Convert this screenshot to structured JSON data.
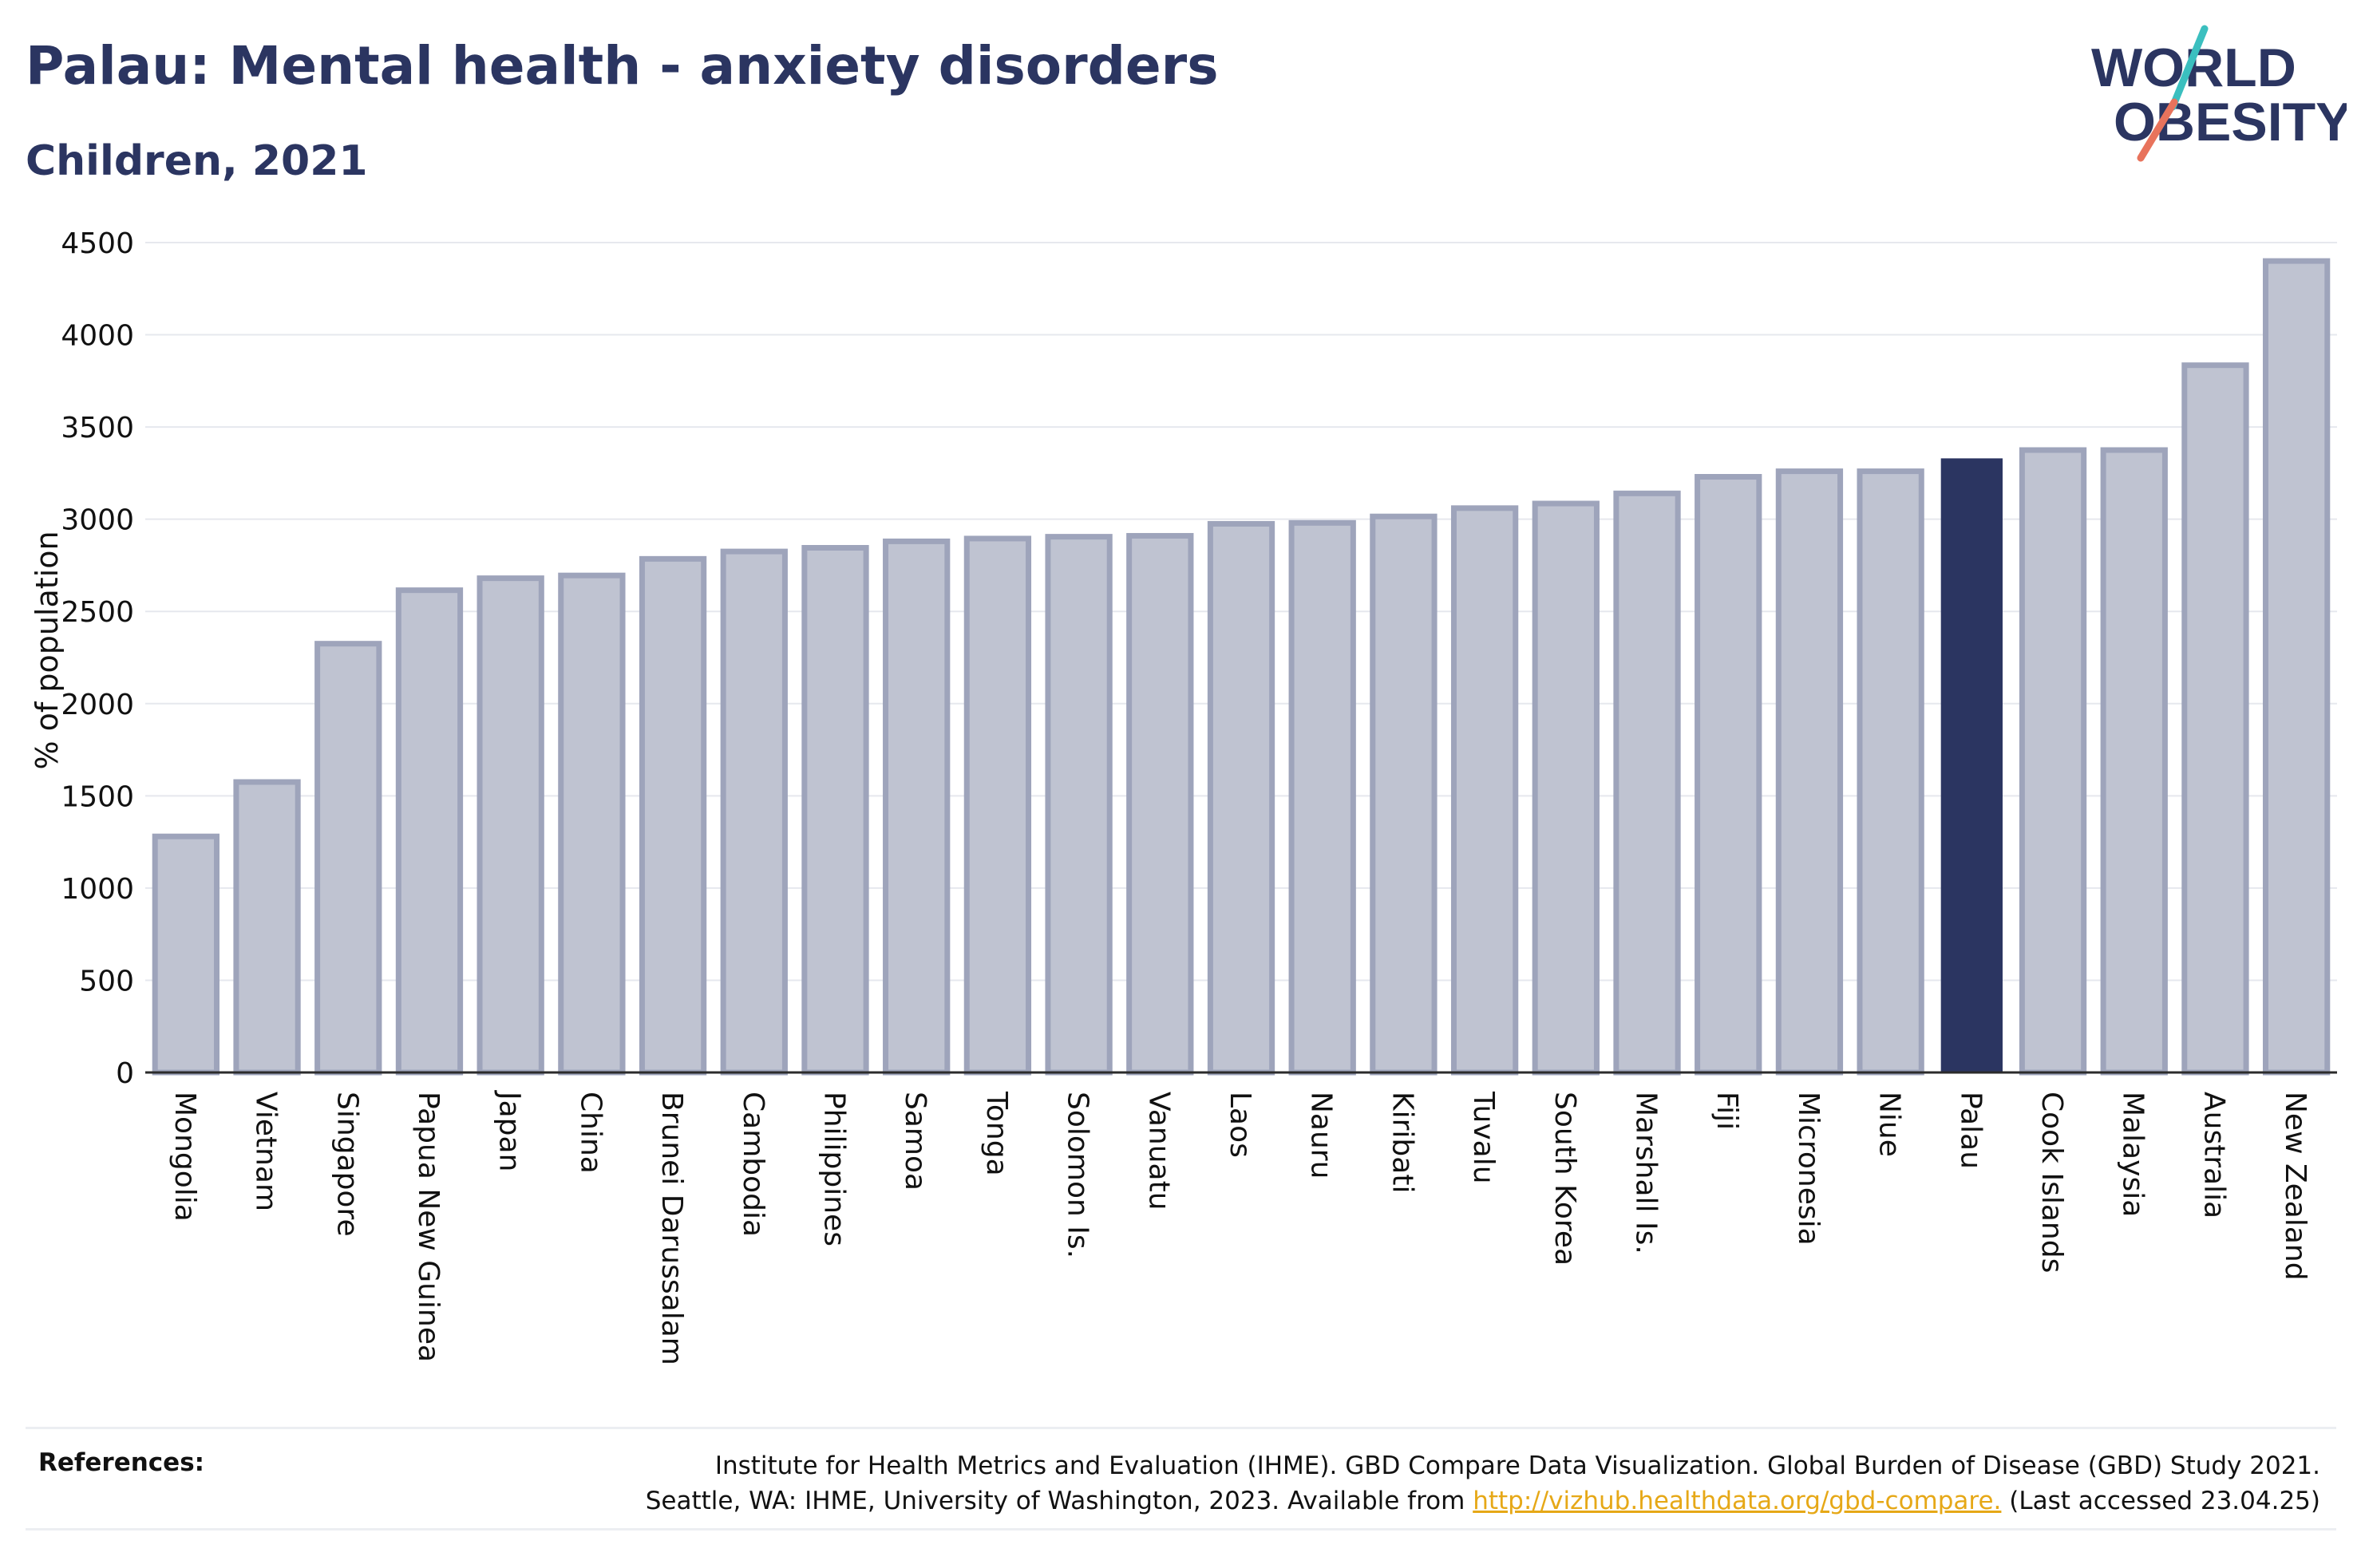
{
  "header": {
    "title": "Palau: Mental health - anxiety disorders",
    "subtitle": "Children, 2021"
  },
  "logo": {
    "line1": "WORLD",
    "line2": "OBESITY",
    "accent_colors": [
      "#3bbfbf",
      "#e8735c"
    ]
  },
  "references": {
    "label": "References:",
    "line1": "Institute for Health Metrics and Evaluation (IHME). GBD Compare Data Visualization. Global Burden of Disease (GBD) Study 2021.",
    "line2_prefix": "Seattle, WA: IHME, University of Washington, 2023. Available from",
    "link_text": "http://vizhub.healthdata.org/gbd-compare.",
    "line2_suffix": "(Last accessed 23.04.25)"
  },
  "colors": {
    "bar_default": "#bfc3d1",
    "bar_default_stroke": "#9ea4bb",
    "bar_highlight": "#2b3561",
    "grid": "#e6e8ee",
    "text": "#2b3561"
  },
  "chart_data": {
    "type": "bar",
    "title": "Palau: Mental health - anxiety disorders",
    "subtitle": "Children, 2021",
    "xlabel": "",
    "ylabel": "% of population",
    "ylim": [
      0,
      4500
    ],
    "yticks": [
      0,
      500,
      1000,
      1500,
      2000,
      2500,
      3000,
      3500,
      4000,
      4500
    ],
    "grid": true,
    "highlight": "Palau",
    "categories": [
      "Mongolia",
      "Vietnam",
      "Singapore",
      "Papua New Guinea",
      "Japan",
      "China",
      "Brunei Darussalam",
      "Cambodia",
      "Philippines",
      "Samoa",
      "Tonga",
      "Solomon Is.",
      "Vanuatu",
      "Laos",
      "Nauru",
      "Kiribati",
      "Tuvalu",
      "South Korea",
      "Marshall Is.",
      "Fiji",
      "Micronesia",
      "Niue",
      "Palau",
      "Cook Islands",
      "Malaysia",
      "Australia",
      "New Zealand"
    ],
    "values": [
      1280,
      1575,
      2325,
      2615,
      2680,
      2695,
      2785,
      2825,
      2845,
      2880,
      2895,
      2905,
      2910,
      2975,
      2980,
      3015,
      3060,
      3085,
      3140,
      3230,
      3260,
      3260,
      3330,
      3375,
      3375,
      3835,
      4400
    ]
  }
}
